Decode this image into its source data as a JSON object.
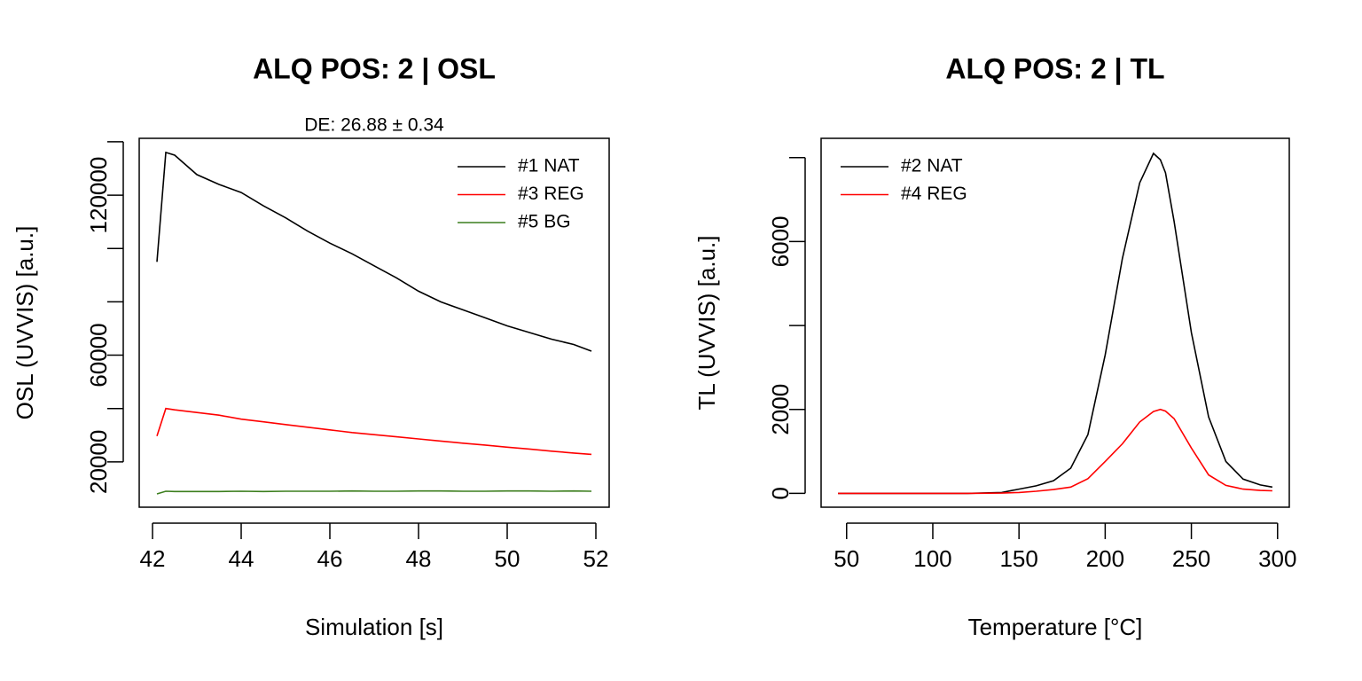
{
  "chart_data": [
    {
      "type": "line",
      "title": "ALQ POS: 2 | OSL",
      "subtitle": "DE: 26.88 ± 0.34",
      "x_label": "Simulation [s]",
      "y_label": "OSL (UVVIS) [a.u.]",
      "x": [
        42.1,
        42.3,
        42.5,
        43,
        43.5,
        44,
        44.5,
        45,
        45.5,
        46,
        46.5,
        47,
        47.5,
        48,
        48.5,
        49,
        49.5,
        50,
        50.5,
        51,
        51.5,
        51.9
      ],
      "series": [
        {
          "name": "#1 NAT",
          "color": "#000000",
          "values": [
            95000,
            136000,
            135000,
            127700,
            124000,
            121000,
            116000,
            111500,
            106500,
            102000,
            98000,
            93500,
            89000,
            84000,
            80000,
            77000,
            74000,
            71000,
            68500,
            66000,
            64000,
            61500
          ]
        },
        {
          "name": "#3 REG",
          "color": "#ff0000",
          "values": [
            29700,
            40000,
            39500,
            38500,
            37500,
            36000,
            35000,
            34000,
            33000,
            32000,
            31000,
            30200,
            29400,
            28600,
            27800,
            27000,
            26300,
            25500,
            24800,
            24000,
            23300,
            22800
          ]
        },
        {
          "name": "#5 BG",
          "color": "#3c7e1e",
          "values": [
            8000,
            9000,
            8900,
            8900,
            8900,
            9000,
            8900,
            9000,
            9000,
            9000,
            9100,
            9000,
            9000,
            9100,
            9100,
            9000,
            9000,
            9100,
            9100,
            9000,
            9100,
            9000
          ]
        }
      ],
      "xlim": [
        41.7,
        52.3
      ],
      "xticks": [
        42,
        44,
        46,
        48,
        50,
        52
      ],
      "ylim": [
        3000,
        141300
      ],
      "yticks": [
        20000,
        60000,
        120000
      ],
      "minor_yticks": [
        40000,
        80000,
        100000,
        140000
      ],
      "legend": "topright"
    },
    {
      "type": "line",
      "title": "ALQ POS: 2 | TL",
      "x_label": "Temperature [°C]",
      "y_label": "TL (UVVIS) [a.u.]",
      "x": [
        45,
        60,
        80,
        100,
        120,
        140,
        150,
        160,
        170,
        180,
        190,
        200,
        210,
        220,
        228,
        232,
        235,
        240,
        250,
        260,
        270,
        280,
        290,
        297
      ],
      "series": [
        {
          "name": "#2 NAT",
          "color": "#000000",
          "values": [
            0,
            0,
            0,
            0,
            0,
            20,
            100,
            180,
            300,
            600,
            1400,
            3300,
            5600,
            7400,
            8100,
            7950,
            7640,
            6480,
            3830,
            1820,
            760,
            340,
            200,
            150
          ]
        },
        {
          "name": "#4 REG",
          "color": "#ff0000",
          "values": [
            0,
            0,
            0,
            0,
            0,
            5,
            20,
            50,
            90,
            150,
            350,
            760,
            1180,
            1700,
            1950,
            2000,
            1960,
            1780,
            1080,
            440,
            190,
            100,
            70,
            60
          ]
        }
      ],
      "xlim": [
        35.2,
        306.8
      ],
      "xticks": [
        50,
        100,
        150,
        200,
        250,
        300
      ],
      "ylim": [
        -330,
        8460
      ],
      "yticks": [
        0,
        2000,
        6000
      ],
      "minor_yticks": [
        4000,
        8000
      ],
      "legend": "topleft"
    }
  ]
}
